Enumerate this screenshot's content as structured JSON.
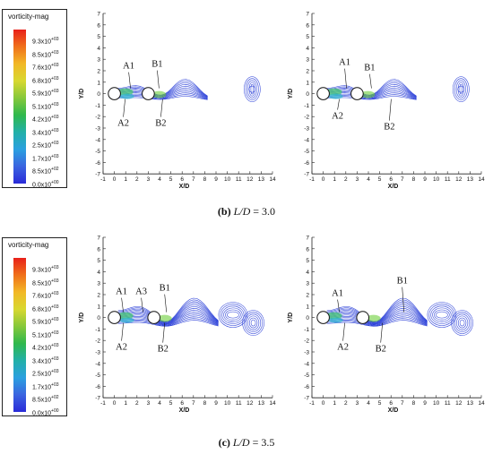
{
  "legend": {
    "title": "vorticity-mag",
    "ticks": [
      {
        "m": "9.3x10",
        "e": "+03"
      },
      {
        "m": "8.5x10",
        "e": "+03"
      },
      {
        "m": "7.6x10",
        "e": "+03"
      },
      {
        "m": "6.8x10",
        "e": "+03"
      },
      {
        "m": "5.9x10",
        "e": "+03"
      },
      {
        "m": "5.1x10",
        "e": "+03"
      },
      {
        "m": "4.2x10",
        "e": "+03"
      },
      {
        "m": "3.4x10",
        "e": "+03"
      },
      {
        "m": "2.5x10",
        "e": "+03"
      },
      {
        "m": "1.7x10",
        "e": "+03"
      },
      {
        "m": "8.5x10",
        "e": "+02"
      },
      {
        "m": "0.0x10",
        "e": "+00"
      }
    ]
  },
  "axes": {
    "xlabel": "X/D",
    "ylabel": "Y/D",
    "xticks": [
      "-1",
      "0",
      "1",
      "2",
      "3",
      "4",
      "5",
      "6",
      "7",
      "8",
      "9",
      "10",
      "11",
      "12",
      "13",
      "14"
    ],
    "yticks": [
      "-7",
      "-6",
      "-5",
      "-4",
      "-3",
      "-2",
      "-1",
      "0",
      "1",
      "2",
      "3",
      "4",
      "5",
      "6",
      "7"
    ]
  },
  "panels": {
    "b_left": {
      "labels": [
        "A1",
        "B1",
        "A2",
        "B2"
      ]
    },
    "b_right": {
      "labels": [
        "A1",
        "B1",
        "A2",
        "B2"
      ]
    },
    "c_left": {
      "labels": [
        "A1",
        "A3",
        "B1",
        "A2",
        "B2"
      ]
    },
    "c_right": {
      "labels": [
        "A1",
        "B1",
        "A2",
        "B2"
      ]
    }
  },
  "captions": {
    "b": {
      "tag": "(b)",
      "ld": "L/D",
      "value": " = 3.0"
    },
    "c": {
      "tag": "(c)",
      "ld": "L/D",
      "value": " = 3.5"
    }
  }
}
